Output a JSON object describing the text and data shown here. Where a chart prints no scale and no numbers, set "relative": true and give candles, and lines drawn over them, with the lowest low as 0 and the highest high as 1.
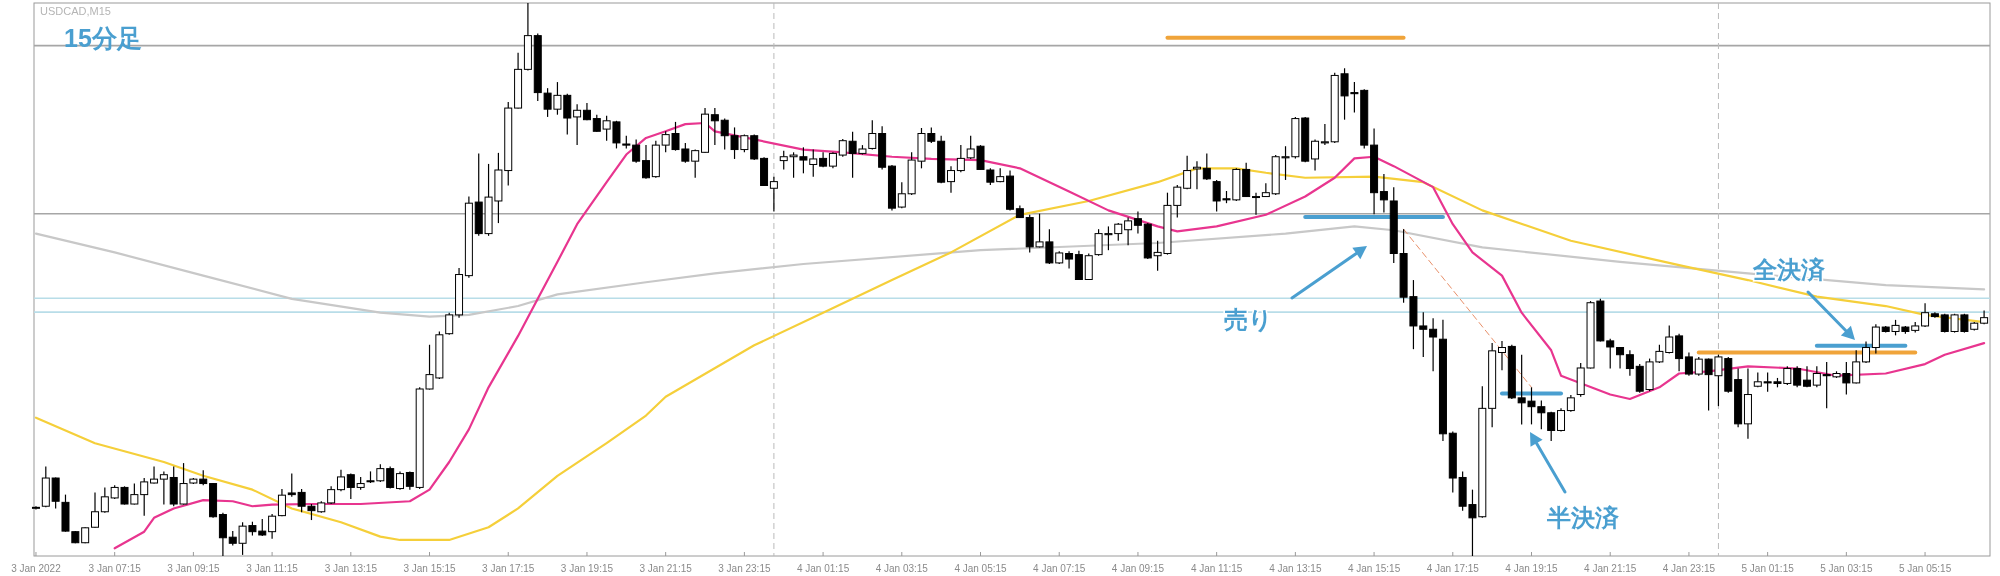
{
  "chart_data": {
    "type": "candlestick",
    "relative": true,
    "title": "USDCAD,M15",
    "subtitle": "15分足",
    "tick_labels": "x",
    "grid": false,
    "xlim": [
      "2022-01-03T05:12",
      "2022-01-05T06:54"
    ],
    "xticks": [
      {
        "value": "2022-01-03T05:15",
        "label": "3 Jan 2022"
      },
      {
        "value": "2022-01-03T07:15",
        "label": "3 Jan 07:15"
      },
      {
        "value": "2022-01-03T09:15",
        "label": "3 Jan 09:15"
      },
      {
        "value": "2022-01-03T11:15",
        "label": "3 Jan 11:15"
      },
      {
        "value": "2022-01-03T13:15",
        "label": "3 Jan 13:15"
      },
      {
        "value": "2022-01-03T15:15",
        "label": "3 Jan 15:15"
      },
      {
        "value": "2022-01-03T17:15",
        "label": "3 Jan 17:15"
      },
      {
        "value": "2022-01-03T19:15",
        "label": "3 Jan 19:15"
      },
      {
        "value": "2022-01-03T21:15",
        "label": "3 Jan 21:15"
      },
      {
        "value": "2022-01-03T23:15",
        "label": "3 Jan 23:15"
      },
      {
        "value": "2022-01-04T01:15",
        "label": "4 Jan 01:15"
      },
      {
        "value": "2022-01-04T03:15",
        "label": "4 Jan 03:15"
      },
      {
        "value": "2022-01-04T05:15",
        "label": "4 Jan 05:15"
      },
      {
        "value": "2022-01-04T07:15",
        "label": "4 Jan 07:15"
      },
      {
        "value": "2022-01-04T09:15",
        "label": "4 Jan 09:15"
      },
      {
        "value": "2022-01-04T11:15",
        "label": "4 Jan 11:15"
      },
      {
        "value": "2022-01-04T13:15",
        "label": "4 Jan 13:15"
      },
      {
        "value": "2022-01-04T15:15",
        "label": "4 Jan 15:15"
      },
      {
        "value": "2022-01-04T17:15",
        "label": "4 Jan 17:15"
      },
      {
        "value": "2022-01-04T19:15",
        "label": "4 Jan 19:15"
      },
      {
        "value": "2022-01-04T21:15",
        "label": "4 Jan 21:15"
      },
      {
        "value": "2022-01-04T23:15",
        "label": "4 Jan 23:15"
      },
      {
        "value": "2022-01-05T01:15",
        "label": "5 Jan 01:15"
      },
      {
        "value": "2022-01-05T03:15",
        "label": "5 Jan 03:15"
      },
      {
        "value": "2022-01-05T05:15",
        "label": "5 Jan 05:15"
      }
    ],
    "x": [
      "2022-01-03T05:15",
      "2022-01-03T05:30",
      "2022-01-03T05:45",
      "2022-01-03T06:00",
      "2022-01-03T06:15",
      "2022-01-03T06:30",
      "2022-01-03T06:45",
      "2022-01-03T07:00",
      "2022-01-03T07:15",
      "2022-01-03T07:30",
      "2022-01-03T07:45",
      "2022-01-03T08:00",
      "2022-01-03T08:15",
      "2022-01-03T08:30",
      "2022-01-03T08:45",
      "2022-01-03T09:00",
      "2022-01-03T09:15",
      "2022-01-03T09:30",
      "2022-01-03T09:45",
      "2022-01-03T10:00",
      "2022-01-03T10:15",
      "2022-01-03T10:30",
      "2022-01-03T10:45",
      "2022-01-03T11:00",
      "2022-01-03T11:15",
      "2022-01-03T11:30",
      "2022-01-03T11:45",
      "2022-01-03T12:00",
      "2022-01-03T12:15",
      "2022-01-03T12:30",
      "2022-01-03T12:45",
      "2022-01-03T13:00",
      "2022-01-03T13:15",
      "2022-01-03T13:30",
      "2022-01-03T13:45",
      "2022-01-03T14:00",
      "2022-01-03T14:15",
      "2022-01-03T14:30",
      "2022-01-03T14:45",
      "2022-01-03T15:00",
      "2022-01-03T15:15",
      "2022-01-03T15:30",
      "2022-01-03T15:45",
      "2022-01-03T16:00",
      "2022-01-03T16:15",
      "2022-01-03T16:30",
      "2022-01-03T16:45",
      "2022-01-03T17:00",
      "2022-01-03T17:15",
      "2022-01-03T17:30",
      "2022-01-03T17:45",
      "2022-01-03T18:00",
      "2022-01-03T18:15",
      "2022-01-03T18:30",
      "2022-01-03T18:45",
      "2022-01-03T19:00",
      "2022-01-03T19:15",
      "2022-01-03T19:30",
      "2022-01-03T19:45",
      "2022-01-03T20:00",
      "2022-01-03T20:15",
      "2022-01-03T20:30",
      "2022-01-03T20:45",
      "2022-01-03T21:00",
      "2022-01-03T21:15",
      "2022-01-03T21:30",
      "2022-01-03T21:45",
      "2022-01-03T22:00",
      "2022-01-03T22:15",
      "2022-01-03T22:30",
      "2022-01-03T22:45",
      "2022-01-03T23:00",
      "2022-01-03T23:15",
      "2022-01-03T23:30",
      "2022-01-03T23:45",
      "2022-01-04T00:00",
      "2022-01-04T00:15",
      "2022-01-04T00:30",
      "2022-01-04T00:45",
      "2022-01-04T01:00",
      "2022-01-04T01:15",
      "2022-01-04T01:30",
      "2022-01-04T01:45",
      "2022-01-04T02:00",
      "2022-01-04T02:15",
      "2022-01-04T02:30",
      "2022-01-04T02:45",
      "2022-01-04T03:00",
      "2022-01-04T03:15",
      "2022-01-04T03:30",
      "2022-01-04T03:45",
      "2022-01-04T04:00",
      "2022-01-04T04:15",
      "2022-01-04T04:30",
      "2022-01-04T04:45",
      "2022-01-04T05:00",
      "2022-01-04T05:15",
      "2022-01-04T05:30",
      "2022-01-04T05:45",
      "2022-01-04T06:00",
      "2022-01-04T06:15",
      "2022-01-04T06:30",
      "2022-01-04T06:45",
      "2022-01-04T07:00",
      "2022-01-04T07:15",
      "2022-01-04T07:30",
      "2022-01-04T07:45",
      "2022-01-04T08:00",
      "2022-01-04T08:15",
      "2022-01-04T08:30",
      "2022-01-04T08:45",
      "2022-01-04T09:00",
      "2022-01-04T09:15",
      "2022-01-04T09:30",
      "2022-01-04T09:45",
      "2022-01-04T10:00",
      "2022-01-04T10:15",
      "2022-01-04T10:30",
      "2022-01-04T10:45",
      "2022-01-04T11:00",
      "2022-01-04T11:15",
      "2022-01-04T11:30",
      "2022-01-04T11:45",
      "2022-01-04T12:00",
      "2022-01-04T12:15",
      "2022-01-04T12:30",
      "2022-01-04T12:45",
      "2022-01-04T13:00",
      "2022-01-04T13:15",
      "2022-01-04T13:30",
      "2022-01-04T13:45",
      "2022-01-04T14:00",
      "2022-01-04T14:15",
      "2022-01-04T14:30",
      "2022-01-04T14:45",
      "2022-01-04T15:00",
      "2022-01-04T15:15",
      "2022-01-04T15:30",
      "2022-01-04T15:45",
      "2022-01-04T16:00",
      "2022-01-04T16:15",
      "2022-01-04T16:30",
      "2022-01-04T16:45",
      "2022-01-04T17:00",
      "2022-01-04T17:15",
      "2022-01-04T17:30",
      "2022-01-04T17:45",
      "2022-01-04T18:00",
      "2022-01-04T18:15",
      "2022-01-04T18:30",
      "2022-01-04T18:45",
      "2022-01-04T19:00",
      "2022-01-04T19:15",
      "2022-01-04T19:30",
      "2022-01-04T19:45",
      "2022-01-04T20:00",
      "2022-01-04T20:15",
      "2022-01-04T20:30",
      "2022-01-04T20:45",
      "2022-01-04T21:00",
      "2022-01-04T21:15",
      "2022-01-04T21:30",
      "2022-01-04T21:45",
      "2022-01-04T22:00",
      "2022-01-04T22:15",
      "2022-01-04T22:30",
      "2022-01-04T22:45",
      "2022-01-04T23:00",
      "2022-01-04T23:15",
      "2022-01-04T23:30",
      "2022-01-04T23:45",
      "2022-01-05T00:00",
      "2022-01-05T00:15",
      "2022-01-05T00:30",
      "2022-01-05T00:45",
      "2022-01-05T01:00",
      "2022-01-05T01:15",
      "2022-01-05T01:30",
      "2022-01-05T01:45",
      "2022-01-05T02:00",
      "2022-01-05T02:15",
      "2022-01-05T02:30",
      "2022-01-05T02:45",
      "2022-01-05T03:00",
      "2022-01-05T03:15",
      "2022-01-05T03:30",
      "2022-01-05T03:45",
      "2022-01-05T04:00",
      "2022-01-05T04:15",
      "2022-01-05T04:30",
      "2022-01-05T04:45",
      "2022-01-05T05:00",
      "2022-01-05T05:15",
      "2022-01-05T05:30",
      "2022-01-05T05:45",
      "2022-01-05T06:00",
      "2022-01-05T06:15",
      "2022-01-05T06:30",
      "2022-01-05T06:45"
    ],
    "ohlc": [
      [
        0.088,
        0.09,
        0.084,
        0.088
      ],
      [
        0.09,
        0.162,
        0.088,
        0.141
      ],
      [
        0.141,
        0.142,
        0.086,
        0.099
      ],
      [
        0.097,
        0.111,
        0.044,
        0.045
      ],
      [
        0.044,
        0.045,
        0.023,
        0.024
      ],
      [
        0.024,
        0.052,
        0.023,
        0.051
      ],
      [
        0.052,
        0.115,
        0.051,
        0.08
      ],
      [
        0.08,
        0.124,
        0.078,
        0.107
      ],
      [
        0.105,
        0.128,
        0.103,
        0.124
      ],
      [
        0.124,
        0.126,
        0.093,
        0.094
      ],
      [
        0.094,
        0.131,
        0.093,
        0.111
      ],
      [
        0.111,
        0.141,
        0.073,
        0.134
      ],
      [
        0.132,
        0.162,
        0.131,
        0.139
      ],
      [
        0.139,
        0.153,
        0.093,
        0.147
      ],
      [
        0.142,
        0.162,
        0.09,
        0.094
      ],
      [
        0.094,
        0.168,
        0.093,
        0.131
      ],
      [
        0.132,
        0.141,
        0.13,
        0.139
      ],
      [
        0.139,
        0.155,
        0.128,
        0.131
      ],
      [
        0.131,
        0.132,
        0.069,
        0.071
      ],
      [
        0.075,
        0.078,
        0,
        0.033
      ],
      [
        0.034,
        0.045,
        0.019,
        0.023
      ],
      [
        0.023,
        0.061,
        0.002,
        0.054
      ],
      [
        0.055,
        0.062,
        0.037,
        0.044
      ],
      [
        0.045,
        0.067,
        0.036,
        0.038
      ],
      [
        0.044,
        0.076,
        0.031,
        0.072
      ],
      [
        0.073,
        0.121,
        0.072,
        0.11
      ],
      [
        0.114,
        0.149,
        0.107,
        0.111
      ],
      [
        0.115,
        0.121,
        0.079,
        0.09
      ],
      [
        0.09,
        0.094,
        0.065,
        0.082
      ],
      [
        0.08,
        0.099,
        0.078,
        0.096
      ],
      [
        0.096,
        0.126,
        0.094,
        0.12
      ],
      [
        0.12,
        0.156,
        0.117,
        0.143
      ],
      [
        0.147,
        0.149,
        0.103,
        0.124
      ],
      [
        0.124,
        0.143,
        0.12,
        0.131
      ],
      [
        0.136,
        0.153,
        0.132,
        0.135
      ],
      [
        0.136,
        0.166,
        0.134,
        0.158
      ],
      [
        0.158,
        0.162,
        0.122,
        0.124
      ],
      [
        0.122,
        0.153,
        0.12,
        0.149
      ],
      [
        0.151,
        0.153,
        0.12,
        0.126
      ],
      [
        0.124,
        0.305,
        0.121,
        0.302
      ],
      [
        0.302,
        0.382,
        0.301,
        0.328
      ],
      [
        0.322,
        0.406,
        0.32,
        0.4
      ],
      [
        0.402,
        0.44,
        0.4,
        0.436
      ],
      [
        0.436,
        0.521,
        0.431,
        0.509
      ],
      [
        0.507,
        0.65,
        0.503,
        0.638
      ],
      [
        0.64,
        0.728,
        0.579,
        0.583
      ],
      [
        0.583,
        0.709,
        0.579,
        0.649
      ],
      [
        0.642,
        0.729,
        0.602,
        0.698
      ],
      [
        0.697,
        0.821,
        0.67,
        0.81
      ],
      [
        0.81,
        0.91,
        0.809,
        0.88
      ],
      [
        0.88,
        1,
        0.878,
        0.941
      ],
      [
        0.941,
        0.945,
        0.823,
        0.838
      ],
      [
        0.837,
        0.846,
        0.794,
        0.808
      ],
      [
        0.808,
        0.857,
        0.798,
        0.833
      ],
      [
        0.833,
        0.836,
        0.762,
        0.792
      ],
      [
        0.794,
        0.817,
        0.743,
        0.806
      ],
      [
        0.806,
        0.819,
        0.788,
        0.789
      ],
      [
        0.791,
        0.798,
        0.767,
        0.768
      ],
      [
        0.772,
        0.796,
        0.751,
        0.787
      ],
      [
        0.785,
        0.787,
        0.737,
        0.747
      ],
      [
        0.745,
        0.76,
        0.737,
        0.743
      ],
      [
        0.743,
        0.753,
        0.711,
        0.714
      ],
      [
        0.715,
        0.743,
        0.682,
        0.684
      ],
      [
        0.686,
        0.751,
        0.684,
        0.743
      ],
      [
        0.743,
        0.768,
        0.73,
        0.762
      ],
      [
        0.764,
        0.785,
        0.733,
        0.735
      ],
      [
        0.736,
        0.747,
        0.711,
        0.714
      ],
      [
        0.714,
        0.735,
        0.684,
        0.733
      ],
      [
        0.73,
        0.81,
        0.729,
        0.799
      ],
      [
        0.798,
        0.81,
        0.743,
        0.787
      ],
      [
        0.788,
        0.791,
        0.735,
        0.76
      ],
      [
        0.76,
        0.775,
        0.718,
        0.735
      ],
      [
        0.735,
        0.762,
        0.73,
        0.76
      ],
      [
        0.76,
        0.762,
        0.716,
        0.718
      ],
      [
        0.719,
        0.721,
        0.669,
        0.67
      ],
      [
        0.665,
        0.686,
        0.623,
        0.677
      ],
      [
        0.715,
        0.733,
        0.699,
        0.722
      ],
      [
        0.722,
        0.73,
        0.684,
        0.725
      ],
      [
        0.722,
        0.739,
        0.692,
        0.716
      ],
      [
        0.708,
        0.735,
        0.686,
        0.718
      ],
      [
        0.719,
        0.73,
        0.703,
        0.705
      ],
      [
        0.705,
        0.73,
        0.701,
        0.728
      ],
      [
        0.725,
        0.754,
        0.722,
        0.751
      ],
      [
        0.75,
        0.767,
        0.684,
        0.728
      ],
      [
        0.728,
        0.743,
        0.726,
        0.736
      ],
      [
        0.737,
        0.788,
        0.735,
        0.764
      ],
      [
        0.764,
        0.777,
        0.699,
        0.703
      ],
      [
        0.705,
        0.707,
        0.625,
        0.629
      ],
      [
        0.631,
        0.676,
        0.629,
        0.655
      ],
      [
        0.655,
        0.73,
        0.653,
        0.716
      ],
      [
        0.714,
        0.774,
        0.701,
        0.764
      ],
      [
        0.764,
        0.775,
        0.747,
        0.75
      ],
      [
        0.75,
        0.76,
        0.674,
        0.676
      ],
      [
        0.677,
        0.705,
        0.657,
        0.697
      ],
      [
        0.697,
        0.743,
        0.694,
        0.719
      ],
      [
        0.72,
        0.76,
        0.718,
        0.736
      ],
      [
        0.741,
        0.743,
        0.698,
        0.699
      ],
      [
        0.698,
        0.701,
        0.671,
        0.676
      ],
      [
        0.677,
        0.701,
        0.676,
        0.686
      ],
      [
        0.687,
        0.697,
        0.625,
        0.627
      ],
      [
        0.628,
        0.634,
        0.611,
        0.612
      ],
      [
        0.612,
        0.617,
        0.549,
        0.559
      ],
      [
        0.559,
        0.619,
        0.558,
        0.568
      ],
      [
        0.568,
        0.591,
        0.528,
        0.53
      ],
      [
        0.53,
        0.551,
        0.528,
        0.548
      ],
      [
        0.547,
        0.551,
        0.52,
        0.537
      ],
      [
        0.545,
        0.552,
        0.499,
        0.5
      ],
      [
        0.5,
        0.547,
        0.499,
        0.543
      ],
      [
        0.545,
        0.591,
        0.543,
        0.583
      ],
      [
        0.581,
        0.596,
        0.553,
        0.583
      ],
      [
        0.583,
        0.602,
        0.57,
        0.6
      ],
      [
        0.59,
        0.612,
        0.562,
        0.606
      ],
      [
        0.61,
        0.623,
        0.583,
        0.598
      ],
      [
        0.6,
        0.602,
        0.537,
        0.539
      ],
      [
        0.543,
        0.57,
        0.516,
        0.549
      ],
      [
        0.547,
        0.657,
        0.545,
        0.634
      ],
      [
        0.634,
        0.671,
        0.612,
        0.667
      ],
      [
        0.665,
        0.724,
        0.663,
        0.697
      ],
      [
        0.7,
        0.714,
        0.663,
        0.703
      ],
      [
        0.701,
        0.728,
        0.68,
        0.682
      ],
      [
        0.677,
        0.68,
        0.623,
        0.642
      ],
      [
        0.646,
        0.66,
        0.638,
        0.644
      ],
      [
        0.644,
        0.701,
        0.642,
        0.699
      ],
      [
        0.699,
        0.711,
        0.649,
        0.65
      ],
      [
        0.65,
        0.657,
        0.617,
        0.65
      ],
      [
        0.65,
        0.674,
        0.649,
        0.657
      ],
      [
        0.655,
        0.725,
        0.653,
        0.722
      ],
      [
        0.72,
        0.741,
        0.68,
        0.722
      ],
      [
        0.722,
        0.794,
        0.719,
        0.791
      ],
      [
        0.792,
        0.794,
        0.712,
        0.714
      ],
      [
        0.718,
        0.753,
        0.697,
        0.75
      ],
      [
        0.747,
        0.781,
        0.743,
        0.749
      ],
      [
        0.749,
        0.874,
        0.747,
        0.869
      ],
      [
        0.872,
        0.882,
        0.789,
        0.832
      ],
      [
        0.838,
        0.857,
        0.802,
        0.836
      ],
      [
        0.842,
        0.844,
        0.737,
        0.743
      ],
      [
        0.743,
        0.773,
        0.618,
        0.657
      ],
      [
        0.659,
        0.691,
        0.621,
        0.644
      ],
      [
        0.642,
        0.667,
        0.53,
        0.547
      ],
      [
        0.547,
        0.591,
        0.458,
        0.468
      ],
      [
        0.469,
        0.499,
        0.374,
        0.416
      ],
      [
        0.416,
        0.441,
        0.36,
        0.41
      ],
      [
        0.41,
        0.43,
        0.334,
        0.396
      ],
      [
        0.392,
        0.427,
        0.208,
        0.221
      ],
      [
        0.222,
        0.225,
        0.115,
        0.141
      ],
      [
        0.142,
        0.153,
        0.082,
        0.09
      ],
      [
        0.093,
        0.12,
        0,
        0.069
      ],
      [
        0.071,
        0.307,
        0.069,
        0.267
      ],
      [
        0.267,
        0.385,
        0.233,
        0.371
      ],
      [
        0.368,
        0.389,
        0.336,
        0.377
      ],
      [
        0.379,
        0.382,
        0.284,
        0.286
      ],
      [
        0.286,
        0.364,
        0.238,
        0.277
      ],
      [
        0.28,
        0.305,
        0.238,
        0.27
      ],
      [
        0.27,
        0.281,
        0.229,
        0.259
      ],
      [
        0.259,
        0.261,
        0.208,
        0.227
      ],
      [
        0.227,
        0.267,
        0.225,
        0.263
      ],
      [
        0.263,
        0.291,
        0.261,
        0.286
      ],
      [
        0.292,
        0.349,
        0.288,
        0.34
      ],
      [
        0.34,
        0.461,
        0.339,
        0.458
      ],
      [
        0.461,
        0.465,
        0.388,
        0.389
      ],
      [
        0.389,
        0.393,
        0.339,
        0.378
      ],
      [
        0.377,
        0.378,
        0.339,
        0.364
      ],
      [
        0.364,
        0.372,
        0.326,
        0.339
      ],
      [
        0.343,
        0.347,
        0.295,
        0.298
      ],
      [
        0.301,
        0.357,
        0.298,
        0.351
      ],
      [
        0.351,
        0.382,
        0.349,
        0.37
      ],
      [
        0.368,
        0.417,
        0.366,
        0.396
      ],
      [
        0.398,
        0.402,
        0.334,
        0.357
      ],
      [
        0.36,
        0.368,
        0.326,
        0.329
      ],
      [
        0.329,
        0.36,
        0.326,
        0.356
      ],
      [
        0.356,
        0.357,
        0.263,
        0.328
      ],
      [
        0.326,
        0.364,
        0.271,
        0.36
      ],
      [
        0.357,
        0.36,
        0.295,
        0.298
      ],
      [
        0.319,
        0.339,
        0.233,
        0.239
      ],
      [
        0.239,
        0.339,
        0.212,
        0.292
      ],
      [
        0.307,
        0.332,
        0.305,
        0.315
      ],
      [
        0.315,
        0.332,
        0.297,
        0.313
      ],
      [
        0.315,
        0.322,
        0.305,
        0.312
      ],
      [
        0.312,
        0.343,
        0.309,
        0.339
      ],
      [
        0.339,
        0.343,
        0.305,
        0.309
      ],
      [
        0.318,
        0.343,
        0.305,
        0.307
      ],
      [
        0.309,
        0.343,
        0.305,
        0.33
      ],
      [
        0.328,
        0.351,
        0.267,
        0.326
      ],
      [
        0.324,
        0.334,
        0.322,
        0.33
      ],
      [
        0.33,
        0.351,
        0.292,
        0.313
      ],
      [
        0.313,
        0.372,
        0.312,
        0.351
      ],
      [
        0.351,
        0.388,
        0.349,
        0.377
      ],
      [
        0.377,
        0.419,
        0.366,
        0.414
      ],
      [
        0.414,
        0.416,
        0.404,
        0.406
      ],
      [
        0.406,
        0.427,
        0.399,
        0.417
      ],
      [
        0.414,
        0.416,
        0.402,
        0.406
      ],
      [
        0.408,
        0.423,
        0.404,
        0.416
      ],
      [
        0.416,
        0.457,
        0.414,
        0.44
      ],
      [
        0.438,
        0.441,
        0.431,
        0.433
      ],
      [
        0.436,
        0.438,
        0.404,
        0.406
      ],
      [
        0.406,
        0.438,
        0.404,
        0.436
      ],
      [
        0.436,
        0.438,
        0.404,
        0.406
      ],
      [
        0.41,
        0.423,
        0.408,
        0.421
      ],
      [
        0.421,
        0.444,
        0.419,
        0.431
      ]
    ],
    "series": [
      {
        "type": "line",
        "color": "#c8c8c8",
        "x": [
          "2022-01-03T05:15",
          "2022-01-03T07:15",
          "2022-01-03T09:30",
          "2022-01-03T11:45",
          "2022-01-03T14:00",
          "2022-01-03T15:15",
          "2022-01-03T16:15",
          "2022-01-03T17:30",
          "2022-01-03T18:30",
          "2022-01-03T20:45",
          "2022-01-03T22:30",
          "2022-01-04T00:45",
          "2022-01-04T05:15",
          "2022-01-04T09:45",
          "2022-01-04T13:00",
          "2022-01-04T14:45",
          "2022-01-04T15:45",
          "2022-01-04T18:00",
          "2022-01-04T21:30",
          "2022-01-05T00:45",
          "2022-01-05T04:15",
          "2022-01-05T06:45"
        ],
        "values": [
          0.583,
          0.549,
          0.507,
          0.465,
          0.44,
          0.433,
          0.436,
          0.452,
          0.473,
          0.495,
          0.511,
          0.528,
          0.553,
          0.566,
          0.583,
          0.596,
          0.589,
          0.558,
          0.532,
          0.511,
          0.49,
          0.482
        ]
      },
      {
        "type": "line",
        "color": "#f5cf3a",
        "x": [
          "2022-01-03T05:15",
          "2022-01-03T06:45",
          "2022-01-03T08:30",
          "2022-01-03T09:30",
          "2022-01-03T10:45",
          "2022-01-03T11:45",
          "2022-01-03T13:00",
          "2022-01-03T14:00",
          "2022-01-03T14:30",
          "2022-01-03T15:45",
          "2022-01-03T16:45",
          "2022-01-03T17:30",
          "2022-01-03T18:30",
          "2022-01-03T19:45",
          "2022-01-03T20:45",
          "2022-01-03T21:15",
          "2022-01-03T23:30",
          "2022-01-04T01:15",
          "2022-01-04T03:00",
          "2022-01-04T04:30",
          "2022-01-04T06:15",
          "2022-01-04T08:00",
          "2022-01-04T09:45",
          "2022-01-04T10:45",
          "2022-01-04T11:45",
          "2022-01-04T12:30",
          "2022-01-04T13:30",
          "2022-01-04T15:15",
          "2022-01-04T16:30",
          "2022-01-04T18:00",
          "2022-01-04T20:15",
          "2022-01-04T23:00",
          "2022-01-05T00:45",
          "2022-01-05T02:30",
          "2022-01-05T04:15",
          "2022-01-05T05:15",
          "2022-01-05T06:45"
        ],
        "values": [
          0.25,
          0.204,
          0.17,
          0.145,
          0.12,
          0.086,
          0.061,
          0.035,
          0.029,
          0.029,
          0.052,
          0.086,
          0.145,
          0.204,
          0.254,
          0.288,
          0.381,
          0.44,
          0.499,
          0.549,
          0.617,
          0.642,
          0.676,
          0.701,
          0.701,
          0.693,
          0.684,
          0.686,
          0.676,
          0.625,
          0.57,
          0.526,
          0.499,
          0.469,
          0.452,
          0.436,
          0.423
        ]
      },
      {
        "type": "line",
        "color": "#e8358f",
        "x": [
          "2022-01-03T07:15",
          "2022-01-03T08:00",
          "2022-01-03T08:15",
          "2022-01-03T08:45",
          "2022-01-03T09:30",
          "2022-01-03T10:15",
          "2022-01-03T10:45",
          "2022-01-03T11:15",
          "2022-01-03T12:15",
          "2022-01-03T13:30",
          "2022-01-03T14:45",
          "2022-01-03T15:15",
          "2022-01-03T15:45",
          "2022-01-03T16:15",
          "2022-01-03T16:45",
          "2022-01-03T17:30",
          "2022-01-03T18:00",
          "2022-01-03T18:30",
          "2022-01-03T19:00",
          "2022-01-03T19:45",
          "2022-01-03T20:15",
          "2022-01-03T20:45",
          "2022-01-03T21:15",
          "2022-01-03T21:45",
          "2022-01-03T22:15",
          "2022-01-03T22:30",
          "2022-01-04T00:45",
          "2022-01-04T01:45",
          "2022-01-04T03:00",
          "2022-01-04T04:00",
          "2022-01-04T05:15",
          "2022-01-04T06:15",
          "2022-01-04T07:30",
          "2022-01-04T08:30",
          "2022-01-04T09:45",
          "2022-01-04T10:15",
          "2022-01-04T11:15",
          "2022-01-04T12:30",
          "2022-01-04T13:30",
          "2022-01-04T14:15",
          "2022-01-04T14:45",
          "2022-01-04T15:15",
          "2022-01-04T15:45",
          "2022-01-04T16:45",
          "2022-01-04T17:15",
          "2022-01-04T17:45",
          "2022-01-04T18:30",
          "2022-01-04T19:00",
          "2022-01-04T19:45",
          "2022-01-04T20:00",
          "2022-01-04T21:15",
          "2022-01-04T21:45",
          "2022-01-04T22:30",
          "2022-01-04T23:00",
          "2022-01-04T23:45",
          "2022-01-05T00:45",
          "2022-01-05T02:00",
          "2022-01-05T03:00",
          "2022-01-05T04:15",
          "2022-01-05T05:15",
          "2022-01-05T05:45",
          "2022-01-05T06:45"
        ],
        "values": [
          0.014,
          0.044,
          0.069,
          0.086,
          0.101,
          0.099,
          0.09,
          0.093,
          0.094,
          0.094,
          0.099,
          0.12,
          0.17,
          0.229,
          0.305,
          0.398,
          0.465,
          0.532,
          0.6,
          0.676,
          0.726,
          0.756,
          0.768,
          0.781,
          0.783,
          0.768,
          0.735,
          0.73,
          0.722,
          0.718,
          0.716,
          0.701,
          0.659,
          0.625,
          0.596,
          0.587,
          0.596,
          0.617,
          0.65,
          0.684,
          0.719,
          0.722,
          0.705,
          0.667,
          0.6,
          0.549,
          0.507,
          0.44,
          0.372,
          0.326,
          0.292,
          0.284,
          0.305,
          0.33,
          0.334,
          0.343,
          0.339,
          0.326,
          0.33,
          0.347,
          0.364,
          0.385
        ]
      },
      {
        "type": "line",
        "color": "#f0a43a",
        "x": [
          "2022-01-04T10:00",
          "2022-01-04T16:00"
        ],
        "values": [
          0.937,
          0.937
        ]
      },
      {
        "type": "line",
        "color": "#4a9fd0",
        "x": [
          "2022-01-04T13:30",
          "2022-01-04T17:00"
        ],
        "values": [
          0.613,
          0.613
        ]
      },
      {
        "type": "line",
        "color": "#e8906a",
        "line_style": "dashed",
        "x": [
          "2022-01-04T16:00",
          "2022-01-04T19:15"
        ],
        "values": [
          0.591,
          0.305
        ]
      },
      {
        "type": "line",
        "color": "#4a9fd0",
        "x": [
          "2022-01-04T18:30",
          "2022-01-04T20:00"
        ],
        "values": [
          0.294,
          0.294
        ]
      },
      {
        "type": "line",
        "color": "#f0a43a",
        "x": [
          "2022-01-04T23:30",
          "2022-01-05T05:00"
        ],
        "values": [
          0.368,
          0.368
        ]
      },
      {
        "type": "line",
        "color": "#4a9fd0",
        "x": [
          "2022-01-05T02:30",
          "2022-01-05T04:45"
        ],
        "values": [
          0.38,
          0.38
        ]
      }
    ],
    "ref_lines": [
      {
        "axis": "y",
        "value": 0.923,
        "color": "#a6a6a6"
      },
      {
        "axis": "y",
        "value": 0.619,
        "color": "#a6a6a6"
      },
      {
        "axis": "y",
        "value": 0.466,
        "color": "#b8dde8"
      },
      {
        "axis": "y",
        "value": 0.441,
        "color": "#b8dde8"
      },
      {
        "axis": "x",
        "value": "2022-01-04T00:00",
        "color": "#bbbbbb",
        "line_style": "dashed"
      },
      {
        "axis": "x",
        "value": "2022-01-05T00:00",
        "color": "#bbbbbb",
        "line_style": "dashed"
      }
    ],
    "annotations": [
      "売り",
      "半決済",
      "全決済"
    ]
  }
}
